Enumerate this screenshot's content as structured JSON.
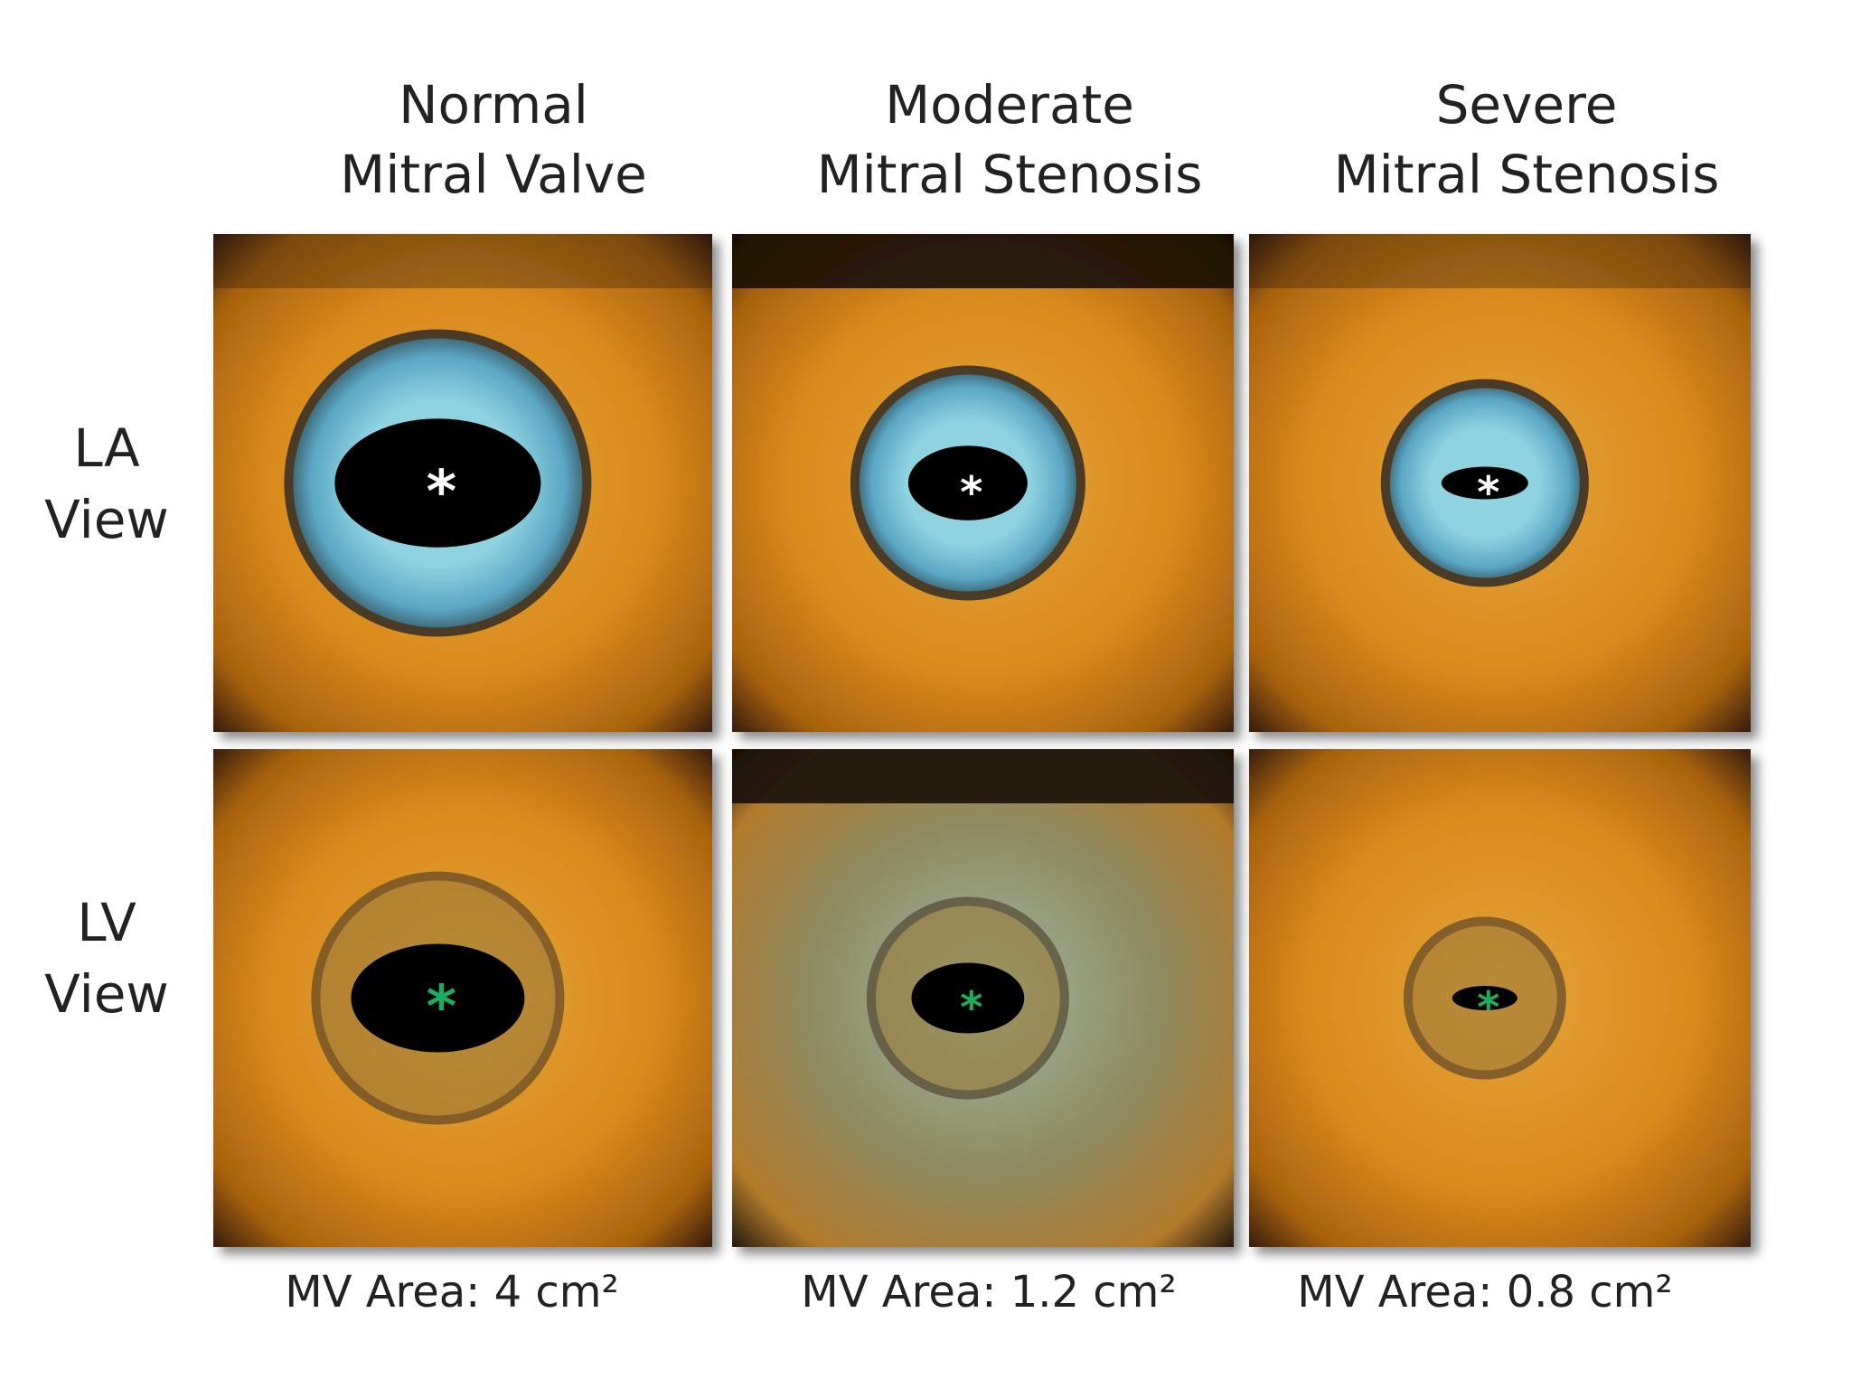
{
  "columns": [
    {
      "title_lines": [
        "Normal",
        "Mitral Valve"
      ],
      "caption": "MV Area: 4 cm²"
    },
    {
      "title_lines": [
        "Moderate",
        "Mitral Stenosis"
      ],
      "caption": "MV Area: 1.2 cm²"
    },
    {
      "title_lines": [
        "Severe",
        "Mitral Stenosis"
      ],
      "caption": "MV Area: 0.8 cm²"
    }
  ],
  "rows": [
    {
      "label_lines": [
        "LA",
        "View"
      ]
    },
    {
      "label_lines": [
        "LV",
        "View"
      ]
    }
  ],
  "panels": [
    [
      {
        "marker": "*"
      },
      {
        "marker": "*"
      },
      {
        "marker": "*"
      }
    ],
    [
      {
        "marker": "*"
      },
      {
        "marker": "*"
      },
      {
        "marker": "*"
      }
    ]
  ]
}
